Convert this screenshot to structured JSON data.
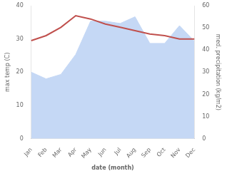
{
  "chart_data": {
    "type": "line",
    "categories": [
      "Jan",
      "Feb",
      "Mar",
      "Apr",
      "May",
      "Jun",
      "Jul",
      "Aug",
      "Sep",
      "Oct",
      "Nov",
      "Dec"
    ],
    "xlabel": "date (month)",
    "ylabel": "max temp (C)",
    "y2label": "med. precipitation (kg/m2)",
    "series": [
      {
        "type": "line",
        "color": "#c0504d",
        "axis": "y",
        "values": [
          29.5,
          31.0,
          33.5,
          37.0,
          36.0,
          34.5,
          33.5,
          32.5,
          31.5,
          31.0,
          30.0,
          30.0
        ]
      },
      {
        "type": "area",
        "color": "#c5d8f5",
        "axis": "y2",
        "values": [
          30.0,
          27.0,
          29.0,
          38.0,
          53.0,
          53.0,
          52.0,
          55.0,
          43.0,
          43.0,
          51.0,
          44.0
        ]
      }
    ],
    "ylim": [
      0,
      40
    ],
    "yticks": [
      0,
      10,
      20,
      30,
      40
    ],
    "y2lim": [
      0,
      60
    ],
    "y2ticks": [
      0,
      10,
      20,
      30,
      40,
      50,
      60
    ],
    "grid": false
  }
}
